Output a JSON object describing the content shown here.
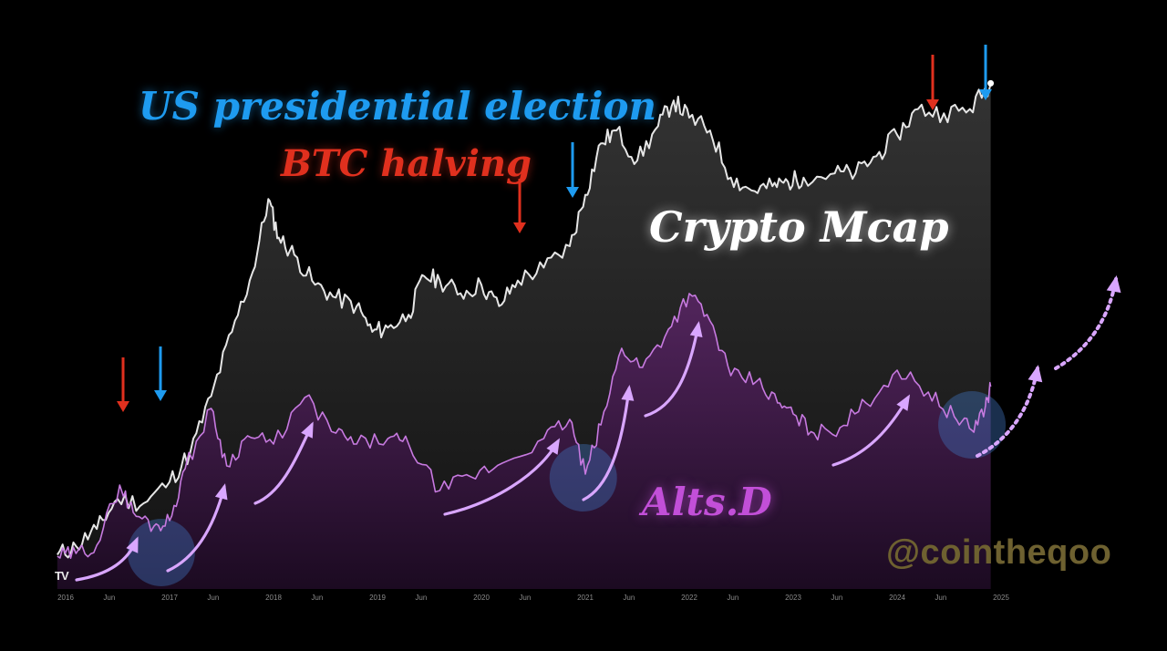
{
  "watermark": "@cointheqoo",
  "tv_logo": "TV",
  "colors": {
    "background": "#000000",
    "mcap_line": "#e6e6e6",
    "alts_line": "#c77ae0",
    "election_arrow": "#1e9bf0",
    "halving_arrow": "#e0301e",
    "annotation_arrow": "#d9a6ff",
    "highlight_circle": "#3d6fb8"
  },
  "chart_data": {
    "type": "line",
    "xlim": [
      2016.0,
      2025.0
    ],
    "x_ticks": [
      {
        "x": 2016.0,
        "label": "2016"
      },
      {
        "x": 2016.42,
        "label": "Jun"
      },
      {
        "x": 2017.0,
        "label": "2017"
      },
      {
        "x": 2017.42,
        "label": "Jun"
      },
      {
        "x": 2018.0,
        "label": "2018"
      },
      {
        "x": 2018.42,
        "label": "Jun"
      },
      {
        "x": 2019.0,
        "label": "2019"
      },
      {
        "x": 2019.42,
        "label": "Jun"
      },
      {
        "x": 2020.0,
        "label": "2020"
      },
      {
        "x": 2020.42,
        "label": "Jun"
      },
      {
        "x": 2021.0,
        "label": "2021"
      },
      {
        "x": 2021.42,
        "label": "Jun"
      },
      {
        "x": 2022.0,
        "label": "2022"
      },
      {
        "x": 2022.42,
        "label": "Jun"
      },
      {
        "x": 2023.0,
        "label": "2023"
      },
      {
        "x": 2023.42,
        "label": "Jun"
      },
      {
        "x": 2024.0,
        "label": "2024"
      },
      {
        "x": 2024.42,
        "label": "Jun"
      },
      {
        "x": 2025.0,
        "label": "2025"
      }
    ],
    "series": [
      {
        "name": "Crypto Mcap",
        "points": [
          [
            2015.92,
            0.08
          ],
          [
            2016.1,
            0.1
          ],
          [
            2016.3,
            0.14
          ],
          [
            2016.5,
            0.21
          ],
          [
            2016.75,
            0.2
          ],
          [
            2017.0,
            0.25
          ],
          [
            2017.2,
            0.32
          ],
          [
            2017.4,
            0.45
          ],
          [
            2017.6,
            0.6
          ],
          [
            2017.8,
            0.74
          ],
          [
            2017.95,
            0.91
          ],
          [
            2018.05,
            0.82
          ],
          [
            2018.2,
            0.78
          ],
          [
            2018.4,
            0.71
          ],
          [
            2018.6,
            0.68
          ],
          [
            2018.8,
            0.66
          ],
          [
            2018.95,
            0.6
          ],
          [
            2019.1,
            0.61
          ],
          [
            2019.3,
            0.64
          ],
          [
            2019.45,
            0.73
          ],
          [
            2019.6,
            0.72
          ],
          [
            2019.8,
            0.69
          ],
          [
            2020.0,
            0.71
          ],
          [
            2020.17,
            0.66
          ],
          [
            2020.35,
            0.72
          ],
          [
            2020.6,
            0.75
          ],
          [
            2020.85,
            0.8
          ],
          [
            2021.0,
            0.92
          ],
          [
            2021.15,
            1.04
          ],
          [
            2021.3,
            1.07
          ],
          [
            2021.5,
            1.0
          ],
          [
            2021.7,
            1.08
          ],
          [
            2021.85,
            1.14
          ],
          [
            2022.0,
            1.1
          ],
          [
            2022.2,
            1.07
          ],
          [
            2022.4,
            0.96
          ],
          [
            2022.6,
            0.93
          ],
          [
            2022.8,
            0.94
          ],
          [
            2022.95,
            0.95
          ],
          [
            2023.1,
            0.96
          ],
          [
            2023.4,
            0.97
          ],
          [
            2023.6,
            0.97
          ],
          [
            2023.8,
            1.01
          ],
          [
            2024.0,
            1.06
          ],
          [
            2024.2,
            1.12
          ],
          [
            2024.45,
            1.11
          ],
          [
            2024.7,
            1.12
          ],
          [
            2024.9,
            1.18
          ]
        ]
      },
      {
        "name": "Alts.D",
        "points": [
          [
            2015.92,
            0.04
          ],
          [
            2016.1,
            0.05
          ],
          [
            2016.3,
            0.08
          ],
          [
            2016.52,
            0.3
          ],
          [
            2016.65,
            0.2
          ],
          [
            2016.85,
            0.15
          ],
          [
            2017.0,
            0.17
          ],
          [
            2017.15,
            0.36
          ],
          [
            2017.4,
            0.58
          ],
          [
            2017.55,
            0.37
          ],
          [
            2017.75,
            0.48
          ],
          [
            2018.0,
            0.45
          ],
          [
            2018.3,
            0.62
          ],
          [
            2018.6,
            0.49
          ],
          [
            2018.8,
            0.45
          ],
          [
            2019.1,
            0.47
          ],
          [
            2019.3,
            0.45
          ],
          [
            2019.6,
            0.28
          ],
          [
            2019.9,
            0.33
          ],
          [
            2020.2,
            0.38
          ],
          [
            2020.6,
            0.47
          ],
          [
            2020.85,
            0.54
          ],
          [
            2021.0,
            0.34
          ],
          [
            2021.15,
            0.52
          ],
          [
            2021.35,
            0.8
          ],
          [
            2021.55,
            0.73
          ],
          [
            2021.8,
            0.87
          ],
          [
            2022.0,
            1.0
          ],
          [
            2022.2,
            0.9
          ],
          [
            2022.4,
            0.7
          ],
          [
            2022.65,
            0.68
          ],
          [
            2022.85,
            0.6
          ],
          [
            2023.0,
            0.56
          ],
          [
            2023.2,
            0.49
          ],
          [
            2023.45,
            0.51
          ],
          [
            2023.7,
            0.6
          ],
          [
            2024.0,
            0.72
          ],
          [
            2024.3,
            0.64
          ],
          [
            2024.55,
            0.55
          ],
          [
            2024.72,
            0.5
          ],
          [
            2024.85,
            0.59
          ],
          [
            2024.9,
            0.66
          ]
        ]
      }
    ]
  },
  "annotations": {
    "election_label": "US presidential election",
    "halving_label": "BTC halving",
    "mcap_label": "Crypto Mcap",
    "alts_label": "Alts.D",
    "election_dates": [
      2016.85,
      2020.85,
      2024.85
    ],
    "halving_dates": [
      2016.53,
      2020.36,
      2024.3
    ]
  }
}
